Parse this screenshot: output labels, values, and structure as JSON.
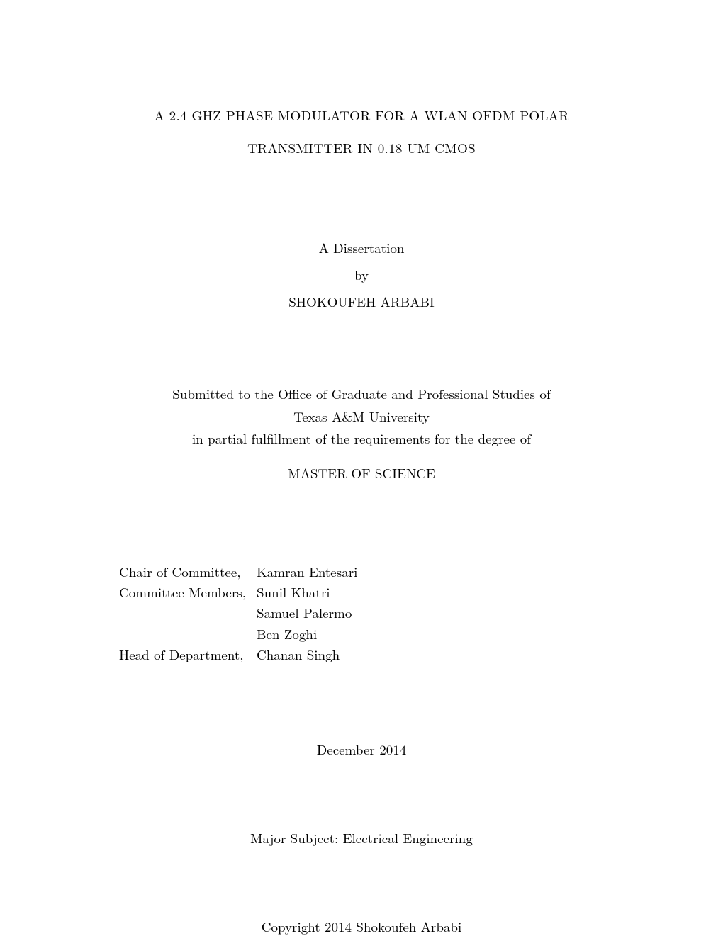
{
  "title": {
    "line1": "A 2.4 GHZ PHASE MODULATOR FOR A WLAN OFDM POLAR",
    "line2": "TRANSMITTER IN 0.18 UM CMOS"
  },
  "dissertation": {
    "label": "A Dissertation",
    "by": "by",
    "author": "SHOKOUFEH ARBABI"
  },
  "submission": {
    "line1": "Submitted to the Office of Graduate and Professional Studies of",
    "line2": "Texas A&M University",
    "line3": "in partial fulfillment of the requirements for the degree of",
    "degree": "MASTER OF SCIENCE"
  },
  "committee": {
    "rows": [
      {
        "role": "Chair of Committee,",
        "name": "Kamran Entesari"
      },
      {
        "role": "Committee Members,",
        "name": "Sunil Khatri"
      },
      {
        "role": "",
        "name": "Samuel Palermo"
      },
      {
        "role": "",
        "name": "Ben Zoghi"
      },
      {
        "role": "Head of Department,",
        "name": "Chanan Singh"
      }
    ]
  },
  "date": "December  2014",
  "subject": "Major Subject: Electrical Engineering",
  "copyright": "Copyright 2014  Shokoufeh Arbabi",
  "style": {
    "background_color": "#ffffff",
    "text_color": "#000000",
    "body_fontsize_pt": 12,
    "title_fontsize_pt": 12,
    "font_family": "Computer Modern / Latin Modern serif"
  }
}
